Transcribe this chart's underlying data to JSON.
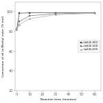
{
  "title": "",
  "xlabel": "Reaction time (minutes)",
  "ylabel": "Conversion of oil to Methyl ester (% mol)",
  "series": [
    {
      "label": "CaK-B-400",
      "x": [
        0,
        2,
        10,
        30,
        60
      ],
      "y": [
        82,
        98.5,
        99,
        99,
        99
      ],
      "color": "#444444",
      "marker": "s",
      "linestyle": "-"
    },
    {
      "label": "CaK-B-500",
      "x": [
        0,
        2,
        10,
        30,
        60
      ],
      "y": [
        82,
        90,
        96,
        98,
        99
      ],
      "color": "#777777",
      "marker": "s",
      "linestyle": "-"
    },
    {
      "label": "CaK-B-600",
      "x": [
        0,
        2,
        10,
        30,
        60
      ],
      "y": [
        82,
        87,
        93,
        97,
        98.5
      ],
      "color": "#aaaaaa",
      "marker": "^",
      "linestyle": "-"
    }
  ],
  "xlim": [
    -1,
    65
  ],
  "ylim": [
    20,
    110
  ],
  "yticks": [
    20,
    40,
    60,
    80,
    100
  ],
  "xticks": [
    0,
    10,
    20,
    30,
    40,
    50,
    60
  ],
  "legend_loc": "center right",
  "figsize": [
    1.5,
    1.5
  ],
  "dpi": 100,
  "fontsize_ticks": 3.5,
  "fontsize_labels": 3.2,
  "fontsize_legend": 3.0,
  "linewidth": 0.5,
  "markersize": 1.8
}
